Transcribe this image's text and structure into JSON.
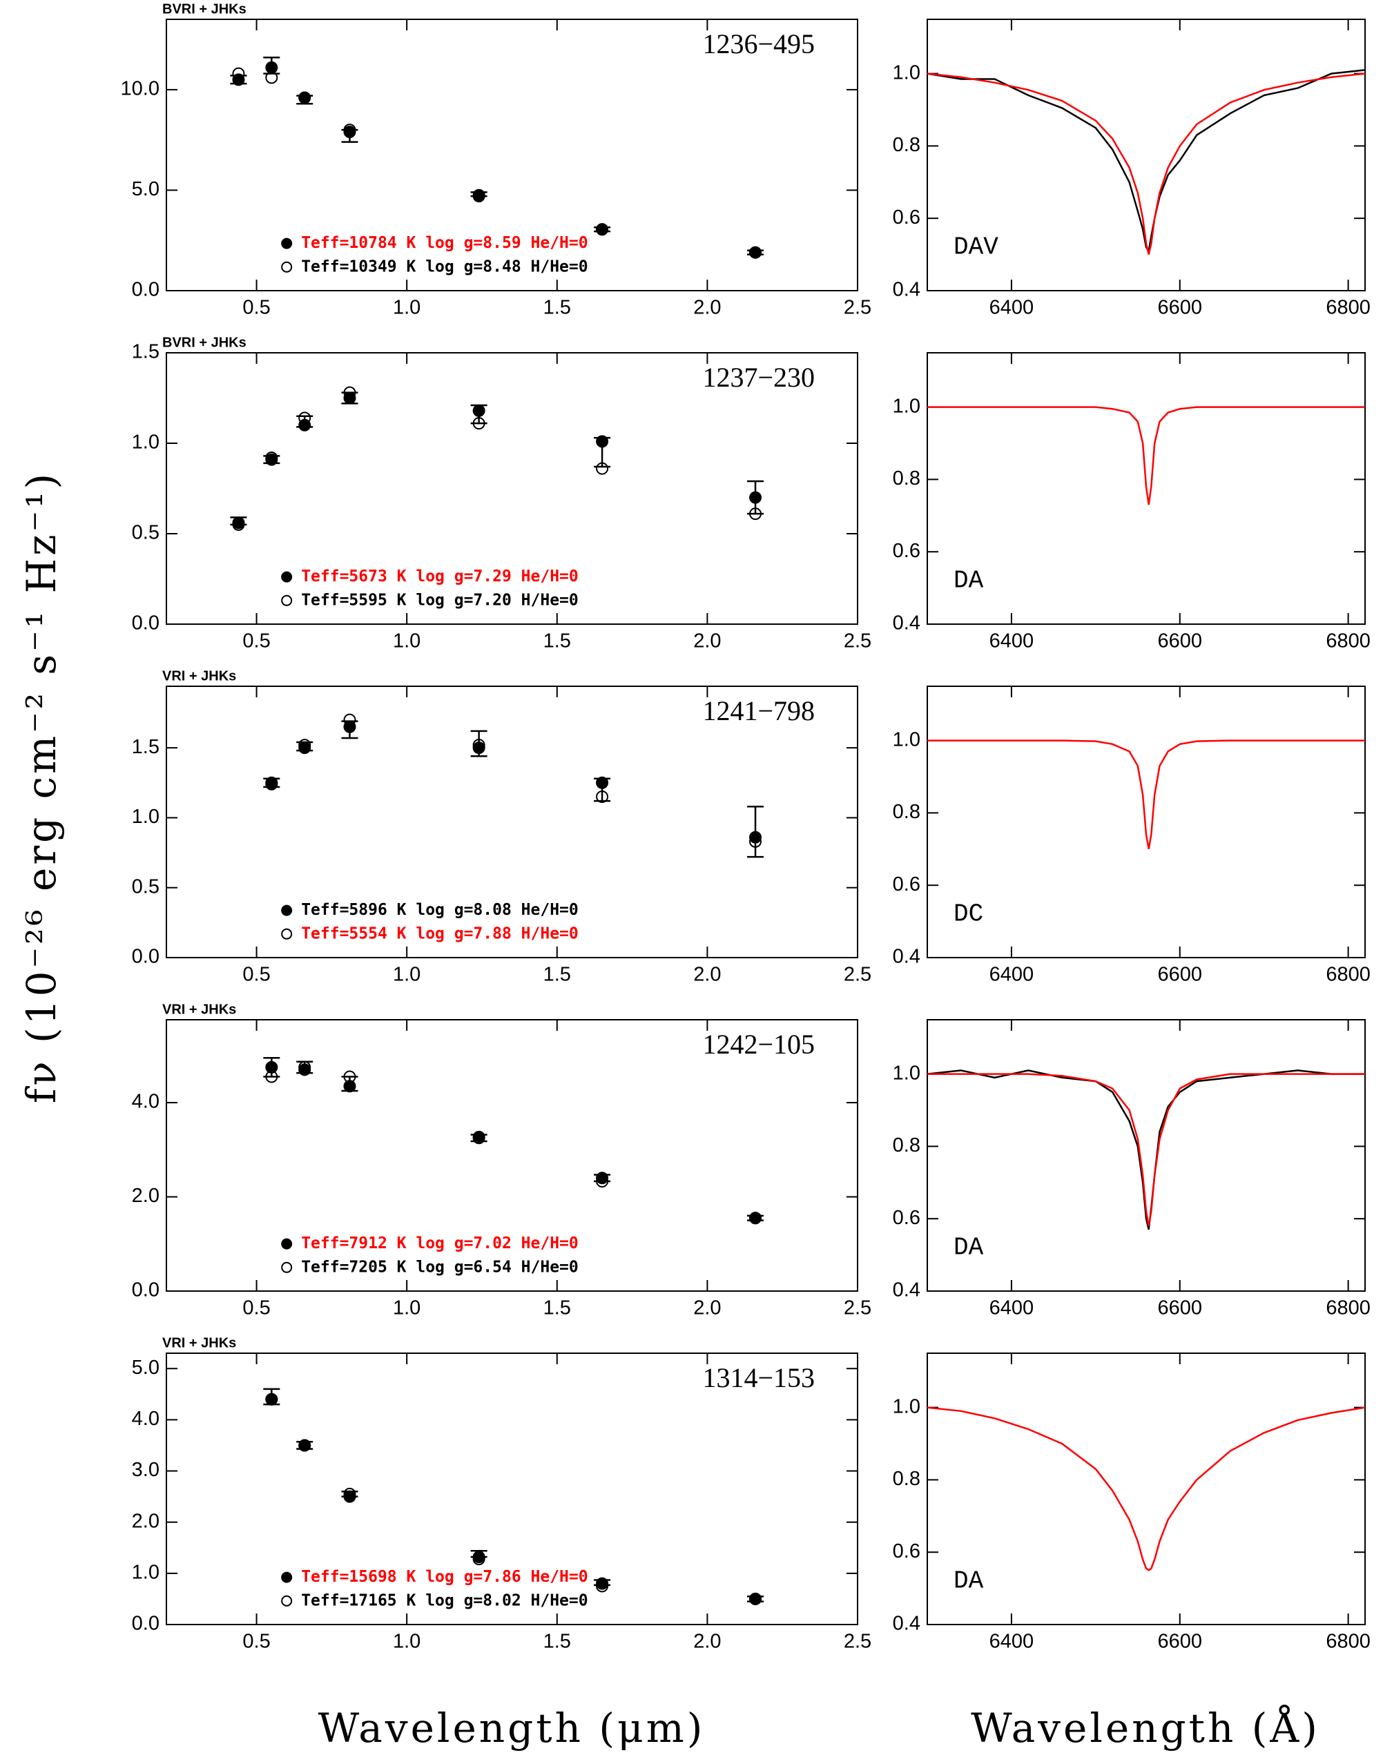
{
  "figure": {
    "ylabel": "fν (10⁻²⁶ erg cm⁻² s⁻¹ Hz⁻¹)",
    "xlabels": [
      "Wavelength (μm)",
      "Wavelength (Å)"
    ]
  },
  "chart_data": [
    {
      "type": "scatter",
      "title": "1236−495",
      "subtitle": "BVRI + JHKs",
      "x": [
        0.44,
        0.55,
        0.66,
        0.81,
        1.24,
        1.65,
        2.16
      ],
      "observed": {
        "values": [
          10.5,
          11.2,
          9.5,
          7.7,
          4.8,
          3.05,
          1.9
        ],
        "errors": [
          0.2,
          0.4,
          0.2,
          0.3,
          0.1,
          0.1,
          0.1
        ]
      },
      "series": [
        {
          "name": "Teff=10784 K  log g=8.59  He/H=0",
          "color": "#ff0000",
          "marker": "filled",
          "values": [
            10.5,
            11.1,
            9.6,
            7.9,
            4.75,
            3.05,
            1.9
          ]
        },
        {
          "name": "Teff=10349 K  log g=8.48  H/He=0",
          "color": "#000000",
          "marker": "open",
          "values": [
            10.8,
            10.6,
            9.6,
            8.0,
            4.7,
            3.05,
            1.9
          ]
        }
      ],
      "xlim": [
        0.2,
        2.5
      ],
      "xticks": [
        0.5,
        {
          "value": 1,
          "label": "1.0"
        },
        1.5,
        {
          "value": 2,
          "label": "2.0"
        },
        2.5
      ],
      "ylim": [
        0,
        13.5
      ],
      "yticks": [
        {
          "value": 0,
          "label": "0.0"
        },
        {
          "value": 5,
          "label": "5.0"
        },
        {
          "value": 10,
          "label": "10.0"
        }
      ]
    },
    {
      "type": "line",
      "annotation": "DAV",
      "x": [
        6300,
        6340,
        6380,
        6420,
        6460,
        6500,
        6520,
        6540,
        6550,
        6556,
        6560,
        6563,
        6566,
        6570,
        6576,
        6586,
        6600,
        6620,
        6660,
        6700,
        6740,
        6780,
        6820
      ],
      "series": [
        {
          "color": "#000000",
          "values": [
            1.0,
            0.985,
            0.985,
            0.94,
            0.905,
            0.85,
            0.79,
            0.7,
            0.62,
            0.57,
            0.52,
            0.51,
            0.55,
            0.6,
            0.66,
            0.72,
            0.76,
            0.83,
            0.89,
            0.94,
            0.96,
            1.0,
            1.01
          ]
        },
        {
          "color": "#ff0000",
          "values": [
            1.0,
            0.99,
            0.975,
            0.955,
            0.925,
            0.87,
            0.82,
            0.74,
            0.67,
            0.6,
            0.53,
            0.5,
            0.53,
            0.6,
            0.67,
            0.74,
            0.8,
            0.86,
            0.92,
            0.955,
            0.975,
            0.99,
            1.0
          ]
        }
      ],
      "xlim": [
        6300,
        6820
      ],
      "xticks": [
        6400,
        6600,
        6800
      ],
      "ylim": [
        0.4,
        1.15
      ],
      "yticks": [
        0.4,
        0.6,
        0.8,
        {
          "value": 1,
          "label": "1.0"
        }
      ]
    },
    {
      "type": "scatter",
      "title": "1237−230",
      "subtitle": "BVRI + JHKs",
      "x": [
        0.44,
        0.55,
        0.66,
        0.81,
        1.24,
        1.65,
        2.16
      ],
      "observed": {
        "values": [
          0.57,
          0.91,
          1.12,
          1.25,
          1.16,
          0.95,
          0.7
        ],
        "errors": [
          0.02,
          0.02,
          0.03,
          0.03,
          0.05,
          0.08,
          0.09
        ]
      },
      "series": [
        {
          "name": "Teff=5673 K  log g=7.29  He/H=0",
          "color": "#ff0000",
          "marker": "filled",
          "values": [
            0.56,
            0.91,
            1.1,
            1.25,
            1.18,
            1.01,
            0.7
          ]
        },
        {
          "name": "Teff=5595 K  log g=7.20  H/He=0",
          "color": "#000000",
          "marker": "open",
          "values": [
            0.55,
            0.92,
            1.14,
            1.28,
            1.11,
            0.86,
            0.61
          ]
        }
      ],
      "xlim": [
        0.2,
        2.5
      ],
      "xticks": [
        0.5,
        {
          "value": 1,
          "label": "1.0"
        },
        1.5,
        {
          "value": 2,
          "label": "2.0"
        },
        2.5
      ],
      "ylim": [
        0,
        1.5
      ],
      "yticks": [
        {
          "value": 0,
          "label": "0.0"
        },
        0.5,
        {
          "value": 1,
          "label": "1.0"
        },
        1.5
      ]
    },
    {
      "type": "line",
      "annotation": "DA",
      "x": [
        6300,
        6340,
        6380,
        6420,
        6460,
        6500,
        6520,
        6540,
        6550,
        6556,
        6560,
        6563,
        6566,
        6570,
        6576,
        6586,
        6600,
        6620,
        6660,
        6700,
        6740,
        6780,
        6820
      ],
      "series": [
        {
          "color": "#ff0000",
          "values": [
            1.0,
            1.0,
            1.0,
            1.0,
            1.0,
            1.0,
            0.995,
            0.985,
            0.96,
            0.9,
            0.78,
            0.73,
            0.78,
            0.9,
            0.96,
            0.985,
            0.995,
            1.0,
            1.0,
            1.0,
            1.0,
            1.0,
            1.0
          ]
        }
      ],
      "xlim": [
        6300,
        6820
      ],
      "xticks": [
        6400,
        6600,
        6800
      ],
      "ylim": [
        0.4,
        1.15
      ],
      "yticks": [
        0.4,
        0.6,
        0.8,
        {
          "value": 1,
          "label": "1.0"
        }
      ]
    },
    {
      "type": "scatter",
      "title": "1241−798",
      "subtitle": "VRI + JHKs",
      "x": [
        0.55,
        0.66,
        0.81,
        1.24,
        1.65,
        2.16
      ],
      "observed": {
        "values": [
          1.25,
          1.51,
          1.63,
          1.53,
          1.2,
          0.9
        ],
        "errors": [
          0.03,
          0.03,
          0.06,
          0.09,
          0.08,
          0.18
        ]
      },
      "series": [
        {
          "name": "Teff=5896 K  log g=8.08  He/H=0",
          "color": "#000000",
          "marker": "filled",
          "values": [
            1.25,
            1.5,
            1.65,
            1.5,
            1.25,
            0.86
          ]
        },
        {
          "name": "Teff=5554 K  log g=7.88  H/He=0",
          "color": "#ff0000",
          "marker": "open",
          "values": [
            1.24,
            1.52,
            1.7,
            1.52,
            1.15,
            0.83
          ]
        }
      ],
      "xlim": [
        0.2,
        2.5
      ],
      "xticks": [
        0.5,
        {
          "value": 1,
          "label": "1.0"
        },
        1.5,
        {
          "value": 2,
          "label": "2.0"
        },
        2.5
      ],
      "ylim": [
        0,
        1.94
      ],
      "yticks": [
        {
          "value": 0,
          "label": "0.0"
        },
        0.5,
        {
          "value": 1,
          "label": "1.0"
        },
        1.5
      ]
    },
    {
      "type": "line",
      "annotation": "DC",
      "x": [
        6300,
        6340,
        6380,
        6420,
        6460,
        6500,
        6520,
        6540,
        6550,
        6556,
        6560,
        6563,
        6566,
        6570,
        6576,
        6586,
        6600,
        6620,
        6660,
        6700,
        6740,
        6780,
        6820
      ],
      "series": [
        {
          "color": "#ff0000",
          "values": [
            1.0,
            1.0,
            1.0,
            1.0,
            1.0,
            0.998,
            0.99,
            0.97,
            0.93,
            0.85,
            0.74,
            0.7,
            0.74,
            0.85,
            0.93,
            0.97,
            0.99,
            0.998,
            1.0,
            1.0,
            1.0,
            1.0,
            1.0
          ]
        }
      ],
      "xlim": [
        6300,
        6820
      ],
      "xticks": [
        6400,
        6600,
        6800
      ],
      "ylim": [
        0.4,
        1.15
      ],
      "yticks": [
        0.4,
        0.6,
        0.8,
        {
          "value": 1,
          "label": "1.0"
        }
      ]
    },
    {
      "type": "scatter",
      "title": "1242−105",
      "subtitle": "VRI + JHKs",
      "x": [
        0.55,
        0.66,
        0.81,
        1.24,
        1.65,
        2.16
      ],
      "observed": {
        "values": [
          4.75,
          4.75,
          4.4,
          3.25,
          2.4,
          1.55
        ],
        "errors": [
          0.2,
          0.12,
          0.15,
          0.07,
          0.07,
          0.05
        ]
      },
      "series": [
        {
          "name": "Teff=7912 K  log g=7.02  He/H=0",
          "color": "#ff0000",
          "marker": "filled",
          "values": [
            4.75,
            4.7,
            4.35,
            3.25,
            2.4,
            1.55
          ]
        },
        {
          "name": "Teff=7205 K  log g=6.54  H/He=0",
          "color": "#000000",
          "marker": "open",
          "values": [
            4.55,
            4.75,
            4.55,
            3.27,
            2.33,
            1.55
          ]
        }
      ],
      "xlim": [
        0.2,
        2.5
      ],
      "xticks": [
        0.5,
        {
          "value": 1,
          "label": "1.0"
        },
        1.5,
        {
          "value": 2,
          "label": "2.0"
        },
        2.5
      ],
      "ylim": [
        0,
        5.76
      ],
      "yticks": [
        {
          "value": 0,
          "label": "0.0"
        },
        {
          "value": 2,
          "label": "2.0"
        },
        {
          "value": 4,
          "label": "4.0"
        }
      ]
    },
    {
      "type": "line",
      "annotation": "DA",
      "x": [
        6300,
        6340,
        6380,
        6420,
        6460,
        6500,
        6520,
        6540,
        6550,
        6556,
        6560,
        6563,
        6566,
        6570,
        6576,
        6586,
        6600,
        6620,
        6660,
        6700,
        6740,
        6780,
        6820
      ],
      "series": [
        {
          "color": "#000000",
          "values": [
            1.0,
            1.01,
            0.99,
            1.01,
            0.99,
            0.98,
            0.95,
            0.87,
            0.8,
            0.7,
            0.6,
            0.57,
            0.63,
            0.72,
            0.84,
            0.91,
            0.95,
            0.98,
            0.99,
            1.0,
            1.01,
            1.0,
            1.0
          ]
        },
        {
          "color": "#ff0000",
          "values": [
            1.0,
            1.0,
            1.0,
            1.0,
            0.995,
            0.98,
            0.96,
            0.9,
            0.82,
            0.72,
            0.62,
            0.58,
            0.62,
            0.72,
            0.82,
            0.9,
            0.96,
            0.985,
            1.0,
            1.0,
            1.0,
            1.0,
            1.0
          ]
        }
      ],
      "xlim": [
        6300,
        6820
      ],
      "xticks": [
        6400,
        6600,
        6800
      ],
      "ylim": [
        0.4,
        1.15
      ],
      "yticks": [
        0.4,
        0.6,
        0.8,
        {
          "value": 1,
          "label": "1.0"
        }
      ]
    },
    {
      "type": "scatter",
      "title": "1314−153",
      "subtitle": "VRI + JHKs",
      "x": [
        0.55,
        0.66,
        0.81,
        1.24,
        1.65,
        2.16
      ],
      "observed": {
        "values": [
          4.45,
          3.5,
          2.55,
          1.38,
          0.82,
          0.5
        ],
        "errors": [
          0.15,
          0.07,
          0.05,
          0.06,
          0.05,
          0.05
        ]
      },
      "series": [
        {
          "name": "Teff=15698 K  log g=7.86  He/H=0",
          "color": "#ff0000",
          "marker": "filled",
          "values": [
            4.4,
            3.5,
            2.5,
            1.32,
            0.8,
            0.5
          ]
        },
        {
          "name": "Teff=17165 K  log g=8.02  H/He=0",
          "color": "#000000",
          "marker": "open",
          "values": [
            4.4,
            3.5,
            2.55,
            1.28,
            0.75,
            0.5
          ]
        }
      ],
      "xlim": [
        0.2,
        2.5
      ],
      "xticks": [
        0.5,
        {
          "value": 1,
          "label": "1.0"
        },
        1.5,
        {
          "value": 2,
          "label": "2.0"
        },
        2.5
      ],
      "ylim": [
        0,
        5.3
      ],
      "yticks": [
        {
          "value": 0,
          "label": "0.0"
        },
        {
          "value": 1,
          "label": "1.0"
        },
        {
          "value": 2,
          "label": "2.0"
        },
        {
          "value": 3,
          "label": "3.0"
        },
        {
          "value": 4,
          "label": "4.0"
        },
        {
          "value": 5,
          "label": "5.0"
        }
      ]
    },
    {
      "type": "line",
      "annotation": "DA",
      "x": [
        6300,
        6340,
        6380,
        6420,
        6460,
        6500,
        6520,
        6540,
        6550,
        6556,
        6560,
        6563,
        6566,
        6570,
        6576,
        6586,
        6600,
        6620,
        6660,
        6700,
        6740,
        6780,
        6820
      ],
      "series": [
        {
          "color": "#ff0000",
          "values": [
            1.0,
            0.99,
            0.97,
            0.94,
            0.9,
            0.83,
            0.77,
            0.69,
            0.63,
            0.58,
            0.555,
            0.55,
            0.555,
            0.58,
            0.63,
            0.69,
            0.74,
            0.8,
            0.88,
            0.93,
            0.965,
            0.985,
            1.0
          ]
        }
      ],
      "xlim": [
        6300,
        6820
      ],
      "xticks": [
        6400,
        6600,
        6800
      ],
      "ylim": [
        0.4,
        1.15
      ],
      "yticks": [
        0.4,
        0.6,
        0.8,
        {
          "value": 1,
          "label": "1.0"
        }
      ]
    }
  ]
}
